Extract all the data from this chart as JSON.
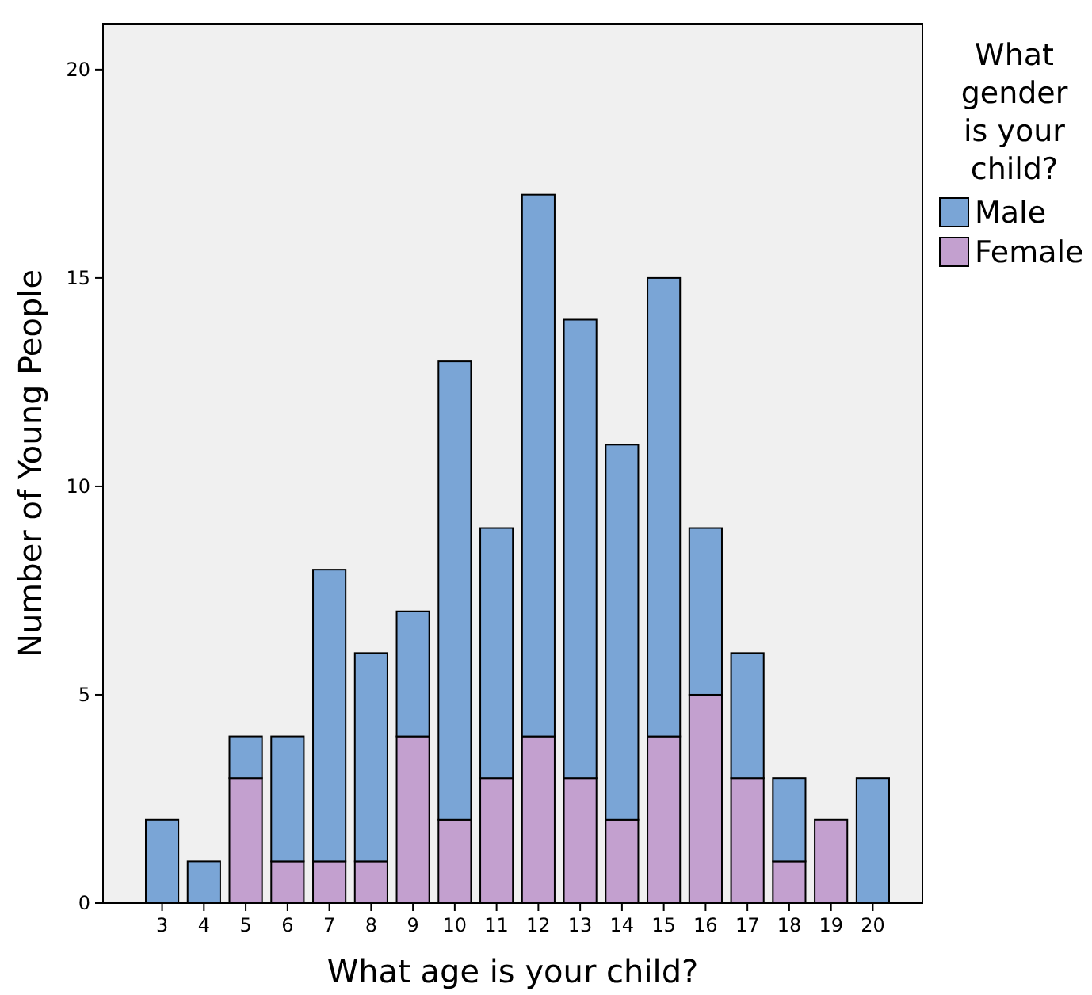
{
  "chart_data": {
    "type": "bar",
    "stacked": true,
    "xlabel": "What age is your child?",
    "ylabel": "Number of Young People",
    "legend_title": "What gender is your child?",
    "legend": "right",
    "categories": [
      "3",
      "4",
      "5",
      "6",
      "7",
      "8",
      "9",
      "10",
      "11",
      "12",
      "13",
      "14",
      "15",
      "16",
      "17",
      "18",
      "19",
      "20"
    ],
    "series": [
      {
        "name": "Female",
        "color": "#c3a0cf",
        "values": [
          0,
          0,
          3,
          1,
          1,
          1,
          4,
          2,
          3,
          4,
          3,
          2,
          4,
          5,
          3,
          1,
          2,
          0
        ]
      },
      {
        "name": "Male",
        "color": "#7aa5d6",
        "values": [
          2,
          1,
          1,
          3,
          7,
          5,
          3,
          11,
          6,
          13,
          11,
          9,
          11,
          4,
          3,
          2,
          0,
          3
        ]
      }
    ],
    "ylim": [
      0,
      21.1
    ],
    "yticks": [
      0,
      5,
      10,
      15,
      20
    ],
    "grid": false
  }
}
